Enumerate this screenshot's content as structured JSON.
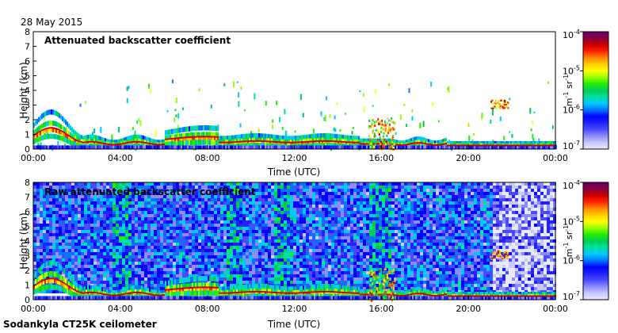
{
  "date_label": "28 May 2015",
  "footer_label": "Sodankyla CT25K ceilometer",
  "colors": {
    "colormap": [
      "#e8e8ff",
      "#c8c8ff",
      "#8c8cff",
      "#4a4aff",
      "#2222ff",
      "#0000ff",
      "#0077ff",
      "#00c8ff",
      "#00e0a0",
      "#00cc55",
      "#22ee00",
      "#99ff00",
      "#ffff00",
      "#ffcc00",
      "#ff8800",
      "#ff2200",
      "#cc0000",
      "#880044",
      "#660066"
    ]
  },
  "chart_data": [
    {
      "type": "heatmap",
      "title": "Attenuated backscatter coefficient",
      "xlabel": "Time (UTC)",
      "ylabel": "Height (km)",
      "xticks": [
        "00:00",
        "04:00",
        "08:00",
        "12:00",
        "16:00",
        "20:00",
        "00:00"
      ],
      "xlim": [
        0,
        24
      ],
      "yticks": [
        "0",
        "1",
        "2",
        "3",
        "4",
        "5",
        "6",
        "7",
        "8"
      ],
      "ylim": [
        0,
        8
      ],
      "colorbar": {
        "scale": "log",
        "range": [
          1e-07,
          0.0001
        ],
        "ticks": [
          {
            "base": "10",
            "exp": "-4"
          },
          {
            "base": "10",
            "exp": "-5"
          },
          {
            "base": "10",
            "exp": "-6"
          },
          {
            "base": "10",
            "exp": "-7"
          }
        ],
        "label_main": "m",
        "label_exp1": "-1",
        "label_mid": " sr",
        "label_exp2": "-1"
      },
      "grid": false
    },
    {
      "type": "heatmap",
      "title": "Raw attenuated backscatter coefficient",
      "xlabel": "Time (UTC)",
      "ylabel": "Height (km)",
      "xticks": [
        "00:00",
        "04:00",
        "08:00",
        "12:00",
        "16:00",
        "20:00",
        "00:00"
      ],
      "xlim": [
        0,
        24
      ],
      "yticks": [
        "0",
        "1",
        "2",
        "3",
        "4",
        "5",
        "6",
        "7",
        "8"
      ],
      "ylim": [
        0,
        8
      ],
      "colorbar": {
        "scale": "log",
        "range": [
          1e-07,
          0.0001
        ],
        "ticks": [
          {
            "base": "10",
            "exp": "-4"
          },
          {
            "base": "10",
            "exp": "-5"
          },
          {
            "base": "10",
            "exp": "-6"
          },
          {
            "base": "10",
            "exp": "-7"
          }
        ],
        "label_main": "m",
        "label_exp1": "-1",
        "label_mid": " sr",
        "label_exp2": "-1"
      },
      "grid": false
    }
  ]
}
